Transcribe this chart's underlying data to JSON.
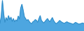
{
  "values": [
    40,
    75,
    160,
    90,
    45,
    70,
    55,
    80,
    60,
    72,
    50,
    65,
    48,
    58,
    52,
    78,
    62,
    120,
    140,
    110,
    75,
    65,
    55,
    60,
    50,
    42,
    38,
    48,
    52,
    60,
    55,
    45,
    65,
    80,
    55,
    48,
    42,
    50,
    58,
    65,
    55,
    48,
    60,
    70,
    55,
    45,
    38,
    42,
    48,
    55,
    50,
    45,
    42,
    40,
    45,
    48,
    44,
    42,
    40,
    38,
    35,
    40,
    45,
    42,
    38,
    36,
    38,
    40,
    42,
    38
  ],
  "fill_color": "#4da6e0",
  "line_color": "#2a86c0",
  "background_color": "#ffffff",
  "ylim_min": 0
}
